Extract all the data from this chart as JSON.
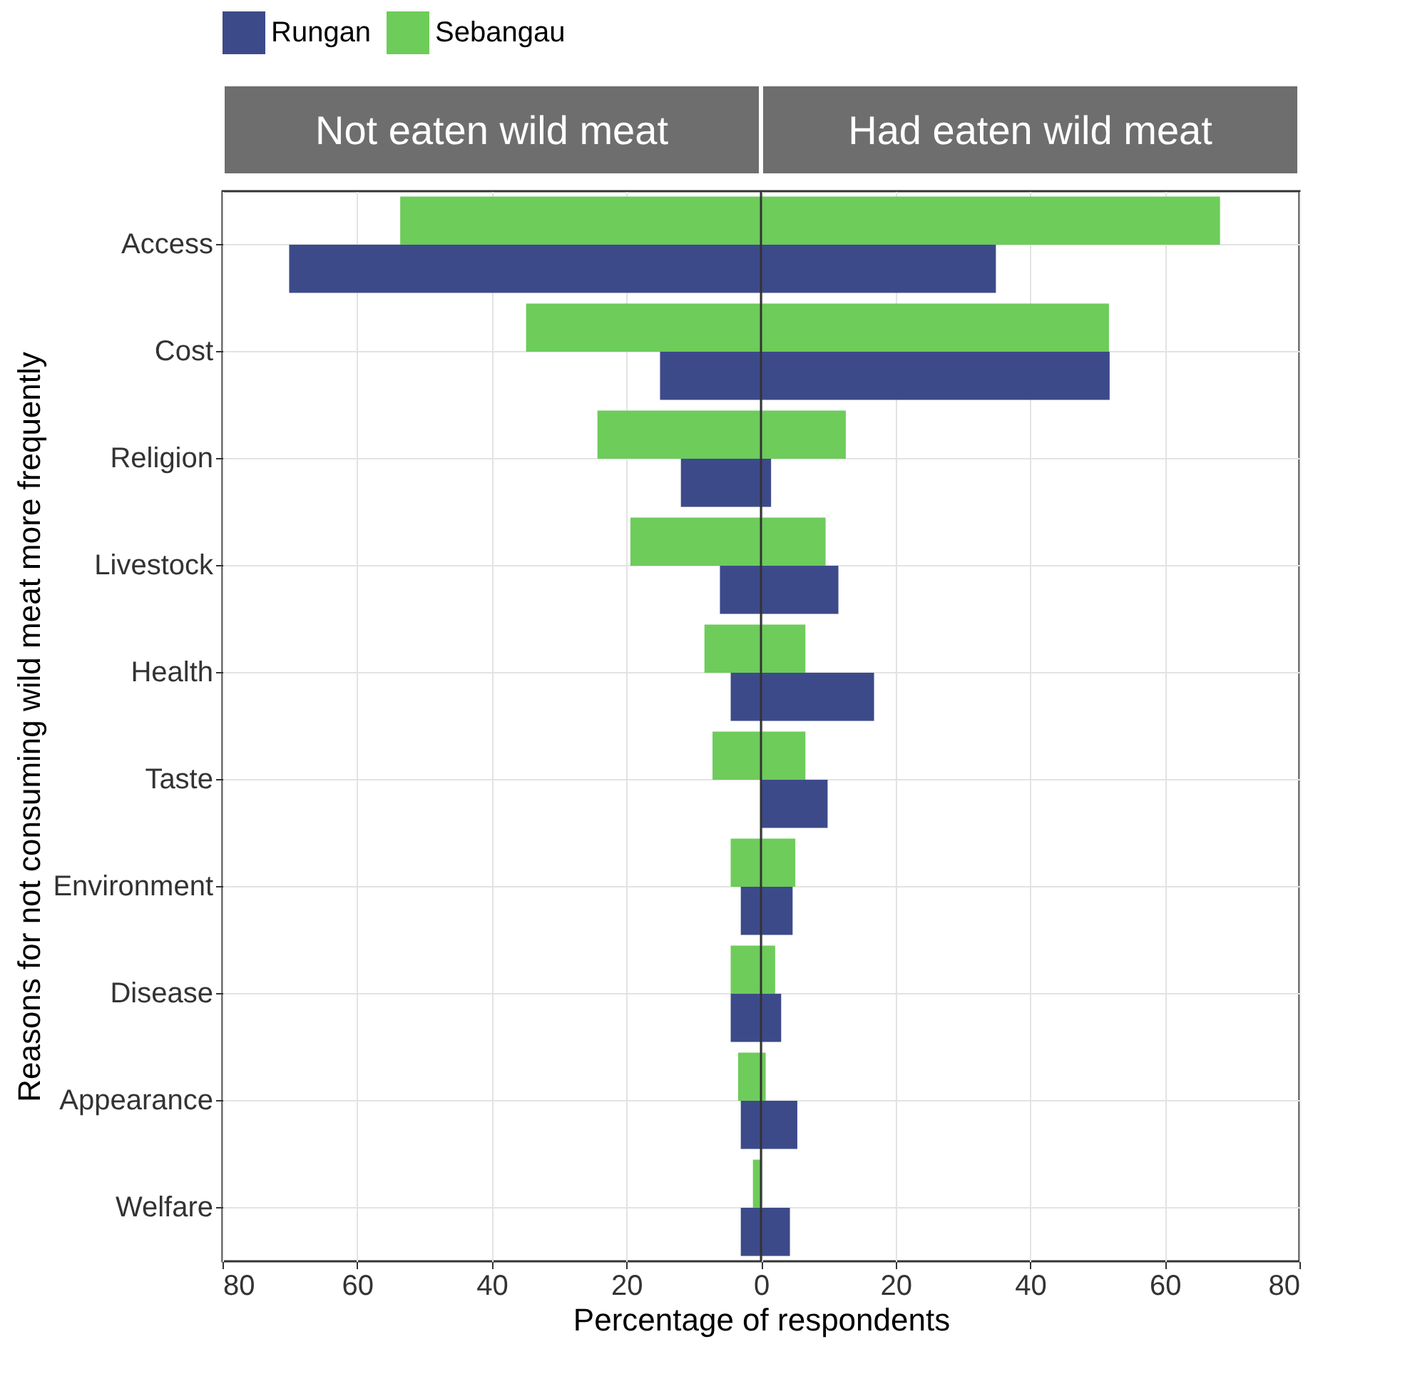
{
  "chart_data": {
    "type": "bar",
    "orientation": "horizontal",
    "xlabel": "Percentage of respondents",
    "ylabel": "Reasons for not consuming wild meat more frequently",
    "annotations": [
      "Not eaten wild meat",
      "Had eaten wild meat"
    ],
    "categories": [
      "Access",
      "Cost",
      "Religion",
      "Livestock",
      "Health",
      "Taste",
      "Environment",
      "Disease",
      "Appearance",
      "Welfare"
    ],
    "series": [
      {
        "name": "Rungan",
        "color": "#3d4a8a",
        "base": [
          -70.1,
          -15.0,
          -11.9,
          -6.1,
          -4.5,
          0,
          -3.0,
          -4.5,
          -3.0,
          -3.0
        ],
        "values": [
          105.0,
          66.8,
          13.4,
          17.6,
          21.3,
          9.9,
          7.7,
          7.5,
          8.4,
          7.3
        ]
      },
      {
        "name": "Sebangau",
        "color": "#6dcc5a",
        "base": [
          -53.6,
          -34.9,
          -24.3,
          -19.4,
          -8.4,
          -7.2,
          -4.5,
          -4.5,
          -3.4,
          -1.2
        ],
        "values": [
          121.8,
          86.6,
          36.9,
          29.0,
          15.0,
          13.8,
          9.6,
          6.6,
          4.1,
          1.2
        ]
      }
    ],
    "xlim": [
      -80,
      80
    ],
    "xticks": [
      {
        "value": -80,
        "label": "80"
      },
      {
        "value": -60,
        "label": "60"
      },
      {
        "value": -40,
        "label": "40"
      },
      {
        "value": -20,
        "label": "20"
      },
      0,
      20,
      40,
      60,
      80
    ],
    "ref_lines": [
      {
        "axis": "x",
        "value": 0,
        "color": "#333333"
      }
    ],
    "grid": true,
    "legend": "top"
  }
}
